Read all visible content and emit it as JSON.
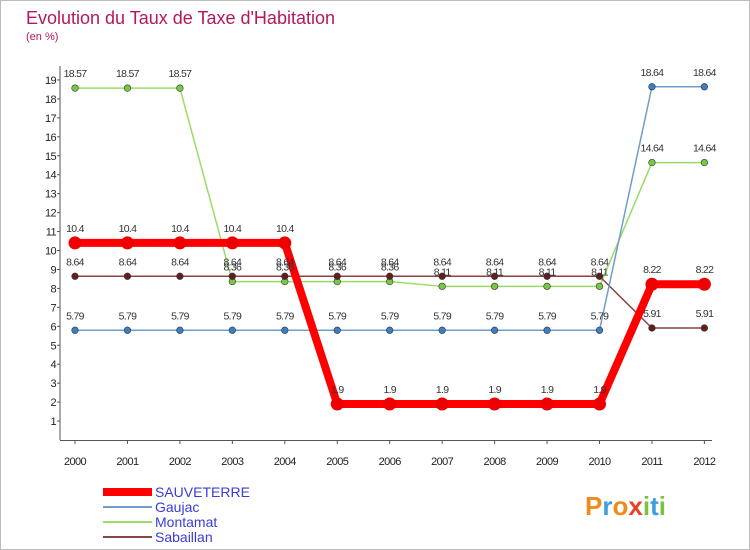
{
  "chart_data": {
    "type": "line",
    "title": "Evolution du Taux de Taxe d'Habitation",
    "subtitle": "(en %)",
    "xlabel": "",
    "ylabel": "",
    "categories": [
      "2000",
      "2001",
      "2002",
      "2003",
      "2004",
      "2005",
      "2006",
      "2007",
      "2008",
      "2009",
      "2010",
      "2011",
      "2012"
    ],
    "yticks": [
      "1",
      "2",
      "3",
      "4",
      "5",
      "6",
      "7",
      "8",
      "9",
      "10",
      "11",
      "12",
      "13",
      "14",
      "15",
      "16",
      "17",
      "18",
      "19"
    ],
    "ylim": [
      0,
      20
    ],
    "grid": false,
    "legend_position": "bottom-left",
    "series": [
      {
        "key": "montamat",
        "name": "Montamat",
        "color": "#99dd66",
        "marker": "#77c944",
        "values": [
          18.57,
          18.57,
          18.57,
          8.36,
          8.36,
          8.36,
          8.36,
          8.11,
          8.11,
          8.11,
          8.11,
          14.64,
          14.64
        ],
        "labels": [
          "18.57",
          "18.57",
          "18.57",
          "8.36",
          "8.36",
          "8.36",
          "8.36",
          "8.11",
          "8.11",
          "8.11",
          "8.11",
          "14.64",
          "14.64"
        ]
      },
      {
        "key": "sabaillan",
        "name": "Sabaillan",
        "color": "#884444",
        "marker": "#661c1c",
        "values": [
          8.64,
          8.64,
          8.64,
          8.64,
          8.64,
          8.64,
          8.64,
          8.64,
          8.64,
          8.64,
          8.64,
          5.91,
          5.91
        ],
        "labels": [
          "8.64",
          "8.64",
          "8.64",
          "8.64",
          "8.64",
          "8.64",
          "8.64",
          "8.64",
          "8.64",
          "8.64",
          "8.64",
          "5.91",
          "5.91"
        ]
      },
      {
        "key": "gaujac",
        "name": "Gaujac",
        "color": "#6f9ecb",
        "marker": "#3a7fc0",
        "values": [
          5.79,
          5.79,
          5.79,
          5.79,
          5.79,
          5.79,
          5.79,
          5.79,
          5.79,
          5.79,
          5.79,
          18.64,
          18.64
        ],
        "labels": [
          "5.79",
          "5.79",
          "5.79",
          "5.79",
          "5.79",
          "5.79",
          "5.79",
          "5.79",
          "5.79",
          "5.79",
          "5.79",
          "18.64",
          "18.64"
        ]
      },
      {
        "key": "sauveterre",
        "name": "SAUVETERRE",
        "color": "#ff0000",
        "marker": "#ee0000",
        "values": [
          10.4,
          10.4,
          10.4,
          10.4,
          10.4,
          1.9,
          1.9,
          1.9,
          1.9,
          1.9,
          1.9,
          8.22,
          8.22
        ],
        "labels": [
          "10.4",
          "10.4",
          "10.4",
          "10.4",
          "10.4",
          "1.9",
          "1.9",
          "1.9",
          "1.9",
          "1.9",
          "1.9",
          "8.22",
          "8.22"
        ]
      }
    ],
    "legend": [
      {
        "key": "sauveterre",
        "label": "SAUVETERRE",
        "color": "#ff0000"
      },
      {
        "key": "gaujac",
        "label": "Gaujac",
        "color": "#6f9ecb"
      },
      {
        "key": "montamat",
        "label": "Montamat",
        "color": "#99dd66"
      },
      {
        "key": "sabaillan",
        "label": "Sabaillan",
        "color": "#884444"
      }
    ]
  },
  "logo": {
    "text": "Proxiti",
    "letters": [
      "P",
      "r",
      "o",
      "x",
      "i",
      "t",
      "i"
    ],
    "colors": [
      "#f08a1c",
      "#3aa0dc",
      "#f08a1c",
      "#e8402a",
      "#7cc242",
      "#3aa0dc",
      "#7cc242"
    ]
  }
}
